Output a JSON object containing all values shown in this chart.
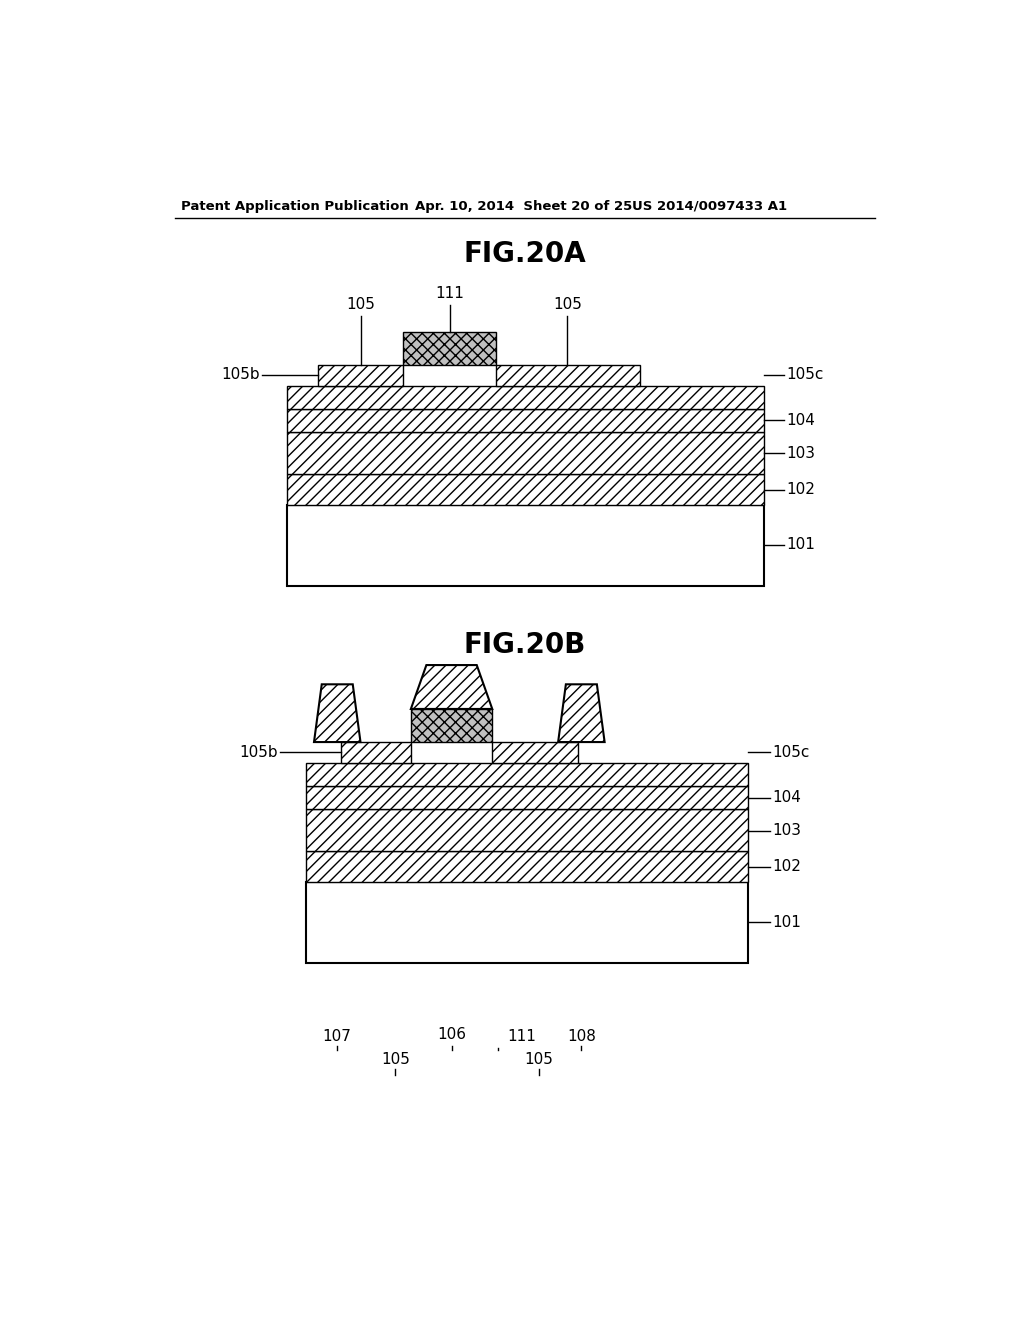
{
  "header_left": "Patent Application Publication",
  "header_center": "Apr. 10, 2014  Sheet 20 of 25",
  "header_right": "US 2014/0097433 A1",
  "fig_a_title": "FIG.20A",
  "fig_b_title": "FIG.20B",
  "bg_color": "#ffffff",
  "line_color": "#000000"
}
